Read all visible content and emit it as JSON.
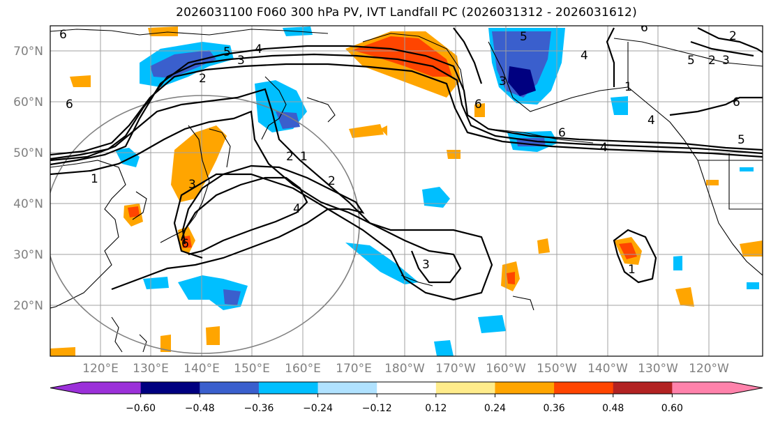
{
  "title": "2026031100 F060 300 hPa PV, IVT Landfall PC (2026031312 - 2026031612)",
  "lat_labels": [
    "70°N",
    "60°N",
    "50°N",
    "40°N",
    "30°N",
    "20°N"
  ],
  "lon_labels": [
    "120°E",
    "130°E",
    "140°E",
    "150°E",
    "160°E",
    "170°E",
    "180°W",
    "170°W",
    "160°W",
    "150°W",
    "140°W",
    "130°W",
    "120°W"
  ],
  "colorbar": {
    "ticks": [
      "−0.60",
      "−0.48",
      "−0.36",
      "−0.24",
      "−0.12",
      "0.12",
      "0.24",
      "0.36",
      "0.48",
      "0.60"
    ],
    "colors": [
      "#9b30d9",
      "#000080",
      "#3a5fcd",
      "#00bfff",
      "#b0e2ff",
      "#ffffff",
      "#ffec8b",
      "#ffa500",
      "#ff4500",
      "#b22222",
      "#ff82ab"
    ]
  },
  "contour_labels": [
    "6",
    "5",
    "4",
    "3",
    "2",
    "1",
    "2",
    "3",
    "4",
    "6",
    "1",
    "2",
    "3",
    "4",
    "3",
    "5",
    "6",
    "4",
    "5",
    "6",
    "4",
    "5",
    "6",
    "3",
    "2",
    "1",
    "6",
    "2",
    "6",
    "1"
  ]
}
